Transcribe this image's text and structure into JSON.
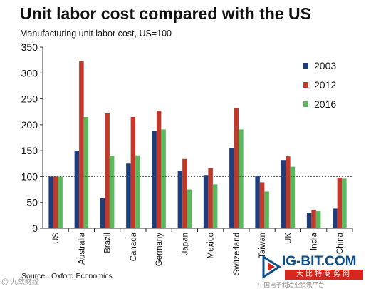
{
  "chart_data": {
    "type": "bar",
    "title": "Unit labor cost compared with the US",
    "subtitle": "Manufacturing unit labor cost, US=100",
    "categories": [
      "US",
      "Australia",
      "Brazil",
      "Canada",
      "Germany",
      "Japan",
      "Mexico",
      "Switzerland",
      "Taiwan",
      "UK",
      "India",
      "China"
    ],
    "series": [
      {
        "name": "2003",
        "color": "#1f3d7a",
        "values": [
          100,
          150,
          58,
          125,
          188,
          111,
          103,
          155,
          102,
          132,
          30,
          38
        ]
      },
      {
        "name": "2012",
        "color": "#c0392b",
        "values": [
          100,
          323,
          222,
          215,
          227,
          134,
          116,
          232,
          89,
          139,
          36,
          98
        ]
      },
      {
        "name": "2016",
        "color": "#5cb85c",
        "values": [
          100,
          215,
          140,
          141,
          191,
          75,
          85,
          191,
          71,
          119,
          33,
          96
        ]
      }
    ],
    "ylim": [
      0,
      350
    ],
    "yticks": [
      0,
      50,
      100,
      150,
      200,
      250,
      300,
      350
    ],
    "reference_line": 100,
    "legend_position": "top-right",
    "grid": false
  },
  "source": "Source : Oxford Economics",
  "watermark_left": "@ 九数财经",
  "brand": {
    "name": "IG-BIT.COM",
    "cn_name": "大比特商务网",
    "tagline": "中国电子制造业资讯平台"
  }
}
